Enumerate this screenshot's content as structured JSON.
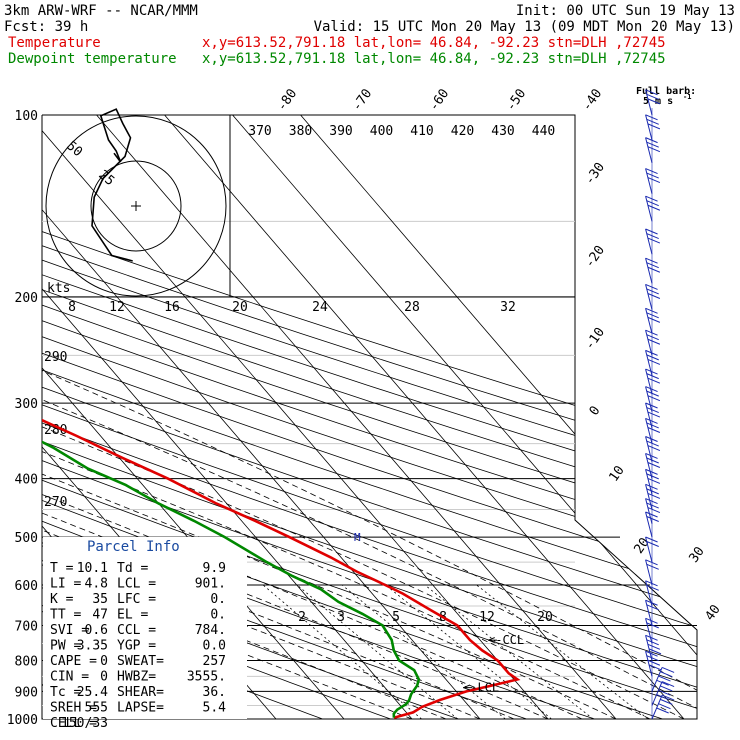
{
  "header": {
    "line1_left": "3km ARW-WRF -- NCAR/MMM",
    "line1_right": "Init: 00 UTC Sun 19 May 13",
    "line2_left": "Fcst:    39 h",
    "line2_right": "Valid: 15 UTC Mon 20 May 13 (09 MDT Mon 20 May 13)",
    "line3_label": "Temperature",
    "line4_label": "Dewpoint temperature",
    "line3_info": "x,y=613.52,791.18   lat,lon= 46.84, -92.23  stn=DLH ,72745",
    "line4_info": "x,y=613.52,791.18   lat,lon= 46.84, -92.23  stn=DLH ,72745"
  },
  "barb_key": {
    "title": "Full barb:",
    "value": "5 m s",
    "exp": "-1"
  },
  "chart_data": {
    "type": "line",
    "subtype": "skew-T log-P",
    "yaxis": {
      "label": "pressure (hPa)",
      "scale": "log",
      "range": [
        1000,
        100
      ],
      "ticks": [
        100,
        200,
        300,
        400,
        500,
        600,
        700,
        800,
        900,
        1000
      ]
    },
    "isotherm_labels": [
      "-80",
      "-70",
      "-60",
      "-50",
      "-40",
      "-30",
      "-20",
      "-10",
      "0",
      "10",
      "20",
      "30",
      "40"
    ],
    "theta_labels": [
      "370",
      "380",
      "390",
      "400",
      "410",
      "420",
      "430",
      "440"
    ],
    "hodo_speed_labels": [
      "8",
      "12",
      "16",
      "20",
      "24",
      "28",
      "32"
    ],
    "theta_side_labels": [
      "290",
      "280",
      "270"
    ],
    "mixing_ratio_labels": [
      "2",
      "3",
      "5",
      "8",
      "12",
      "20"
    ],
    "hodograph": {
      "label_kts": "kts",
      "ring_labels": [
        "50",
        "25"
      ],
      "points": [
        [
          -3,
          -50
        ],
        [
          -22,
          -45
        ],
        [
          -40,
          -18
        ],
        [
          -38,
          8
        ],
        [
          -30,
          25
        ],
        [
          -10,
          45
        ],
        [
          -5,
          62
        ],
        [
          -12,
          75
        ],
        [
          -18,
          88
        ],
        [
          -32,
          82
        ],
        [
          -25,
          60
        ],
        [
          -18,
          50
        ],
        [
          -14,
          40
        ],
        [
          -20,
          48
        ]
      ]
    },
    "series": [
      {
        "name": "Temperature",
        "color": "#e00000",
        "points": [
          [
            995,
            -12.5
          ],
          [
            975,
            -9
          ],
          [
            955,
            -7
          ],
          [
            930,
            -3.5
          ],
          [
            900,
            1.5
          ],
          [
            880,
            6
          ],
          [
            860,
            10.5
          ],
          [
            840,
            10
          ],
          [
            800,
            10
          ],
          [
            770,
            9
          ],
          [
            740,
            8.5
          ],
          [
            700,
            8.5
          ],
          [
            660,
            6.5
          ],
          [
            620,
            4.5
          ],
          [
            600,
            3
          ],
          [
            570,
            0.5
          ],
          [
            540,
            -1.5
          ],
          [
            500,
            -5
          ],
          [
            470,
            -8
          ],
          [
            440,
            -11.5
          ],
          [
            400,
            -15.5
          ],
          [
            370,
            -19.5
          ],
          [
            340,
            -23.5
          ],
          [
            300,
            -30
          ],
          [
            270,
            -34.5
          ],
          [
            240,
            -40
          ],
          [
            220,
            -44.5
          ],
          [
            200,
            -50
          ],
          [
            185,
            -54
          ],
          [
            170,
            -56.5
          ],
          [
            150,
            -59
          ],
          [
            135,
            -58
          ],
          [
            122,
            -53
          ],
          [
            112,
            -49
          ],
          [
            103,
            -47.5
          ]
        ]
      },
      {
        "name": "Dewpoint temperature",
        "color": "#008800",
        "points": [
          [
            995,
            -12.5
          ],
          [
            980,
            -12
          ],
          [
            965,
            -11
          ],
          [
            945,
            -9
          ],
          [
            930,
            -8
          ],
          [
            910,
            -7
          ],
          [
            880,
            -5
          ],
          [
            860,
            -4
          ],
          [
            830,
            -3.5
          ],
          [
            800,
            -4.5
          ],
          [
            770,
            -4
          ],
          [
            740,
            -3
          ],
          [
            700,
            -2.5
          ],
          [
            670,
            -4
          ],
          [
            640,
            -6
          ],
          [
            610,
            -7
          ],
          [
            580,
            -9.5
          ],
          [
            550,
            -11.5
          ],
          [
            500,
            -14.5
          ],
          [
            470,
            -17
          ],
          [
            440,
            -20
          ],
          [
            410,
            -22.5
          ],
          [
            385,
            -26
          ],
          [
            355,
            -28.5
          ],
          [
            320,
            -33
          ],
          [
            290,
            -38
          ],
          [
            275,
            -47
          ],
          [
            265,
            -50
          ],
          [
            245,
            -56
          ],
          [
            220,
            -60
          ],
          [
            200,
            -65
          ],
          [
            185,
            -71
          ],
          [
            170,
            -72
          ],
          [
            150,
            -72
          ],
          [
            140,
            -71
          ],
          [
            125,
            -74
          ],
          [
            110,
            -78
          ],
          [
            100,
            -79
          ]
        ]
      }
    ],
    "levels": [
      {
        "name": "CCL",
        "pressure": 784
      },
      {
        "name": "LCL",
        "pressure": 901
      }
    ],
    "wind_profile": {
      "units": "m s-1",
      "pressures": [
        100,
        110,
        120,
        135,
        150,
        170,
        190,
        210,
        230,
        250,
        270,
        290,
        310,
        330,
        350,
        375,
        400,
        425,
        450,
        475,
        500,
        550,
        600,
        650,
        700,
        750,
        800,
        850,
        900,
        950,
        1000
      ]
    }
  },
  "parcel_info": {
    "title": "Parcel Info",
    "rows": [
      [
        "T  =",
        "10.1",
        "Td  =",
        "9.9"
      ],
      [
        "LI =",
        "4.8",
        "LCL =",
        "901."
      ],
      [
        "K  =",
        "35",
        "LFC =",
        "0."
      ],
      [
        "TT =",
        "47",
        "EL  =",
        "0."
      ],
      [
        "SVI =",
        "0.6",
        "CCL =",
        "784."
      ],
      [
        "PW =",
        "3.35",
        "YGP =",
        "0.0"
      ],
      [
        "CAPE =",
        "0",
        "SWEAT=",
        "257"
      ],
      [
        "CIN =",
        "0",
        "HWBZ=",
        "3555."
      ],
      [
        "Tc =",
        "25.4",
        "SHEAR=",
        "36."
      ],
      [
        "SREH =",
        "555",
        "LAPSE=",
        "5.4"
      ],
      [
        "CELL =",
        "150/33",
        "",
        ""
      ]
    ]
  }
}
